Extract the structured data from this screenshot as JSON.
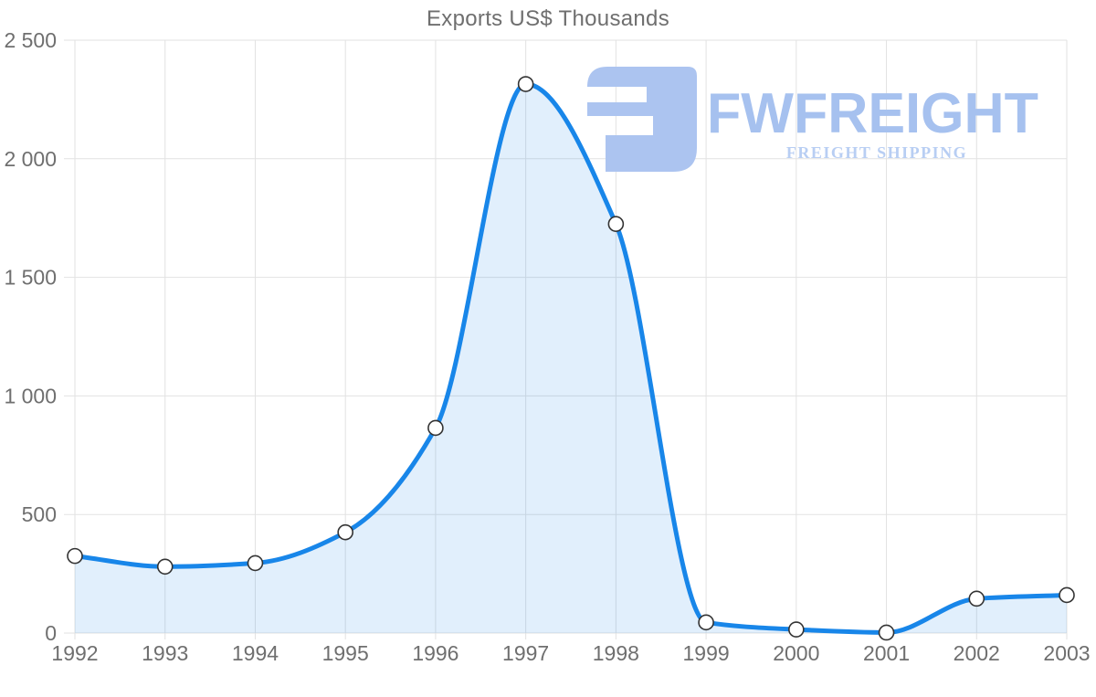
{
  "chart_data": {
    "type": "area",
    "title": "Exports US$ Thousands",
    "categories": [
      "1992",
      "1993",
      "1994",
      "1995",
      "1996",
      "1997",
      "1998",
      "1999",
      "2000",
      "2001",
      "2002",
      "2003"
    ],
    "series": [
      {
        "name": "Exports US$ Thousands",
        "values": [
          325,
          280,
          295,
          425,
          865,
          2315,
          1725,
          45,
          15,
          2,
          145,
          160
        ]
      }
    ],
    "xlabel": "",
    "ylabel": "",
    "ylim": [
      0,
      2500
    ],
    "yticks": [
      {
        "value": 0,
        "label": "0"
      },
      {
        "value": 500,
        "label": "500"
      },
      {
        "value": 1000,
        "label": "1 000"
      },
      {
        "value": 1500,
        "label": "1 500"
      },
      {
        "value": 2000,
        "label": "2 000"
      },
      {
        "value": 2500,
        "label": "2 500"
      }
    ],
    "grid": "both",
    "legend": "none",
    "line_smoothing": "monotone",
    "colors": {
      "line": "#1886e9",
      "fill": "rgba(24,134,233,0.13)",
      "gridline": "#e2e2e2",
      "axis_label": "#6f6f6f",
      "marker_fill": "#ffffff",
      "marker_stroke": "#333333"
    }
  },
  "watermark": {
    "brand": "FWFREIGHT",
    "tagline": "FREIGHT SHIPPING",
    "logo_color": "#acc4f0",
    "brand_color": "#a6c1ef",
    "tagline_color": "#b8cef3"
  }
}
